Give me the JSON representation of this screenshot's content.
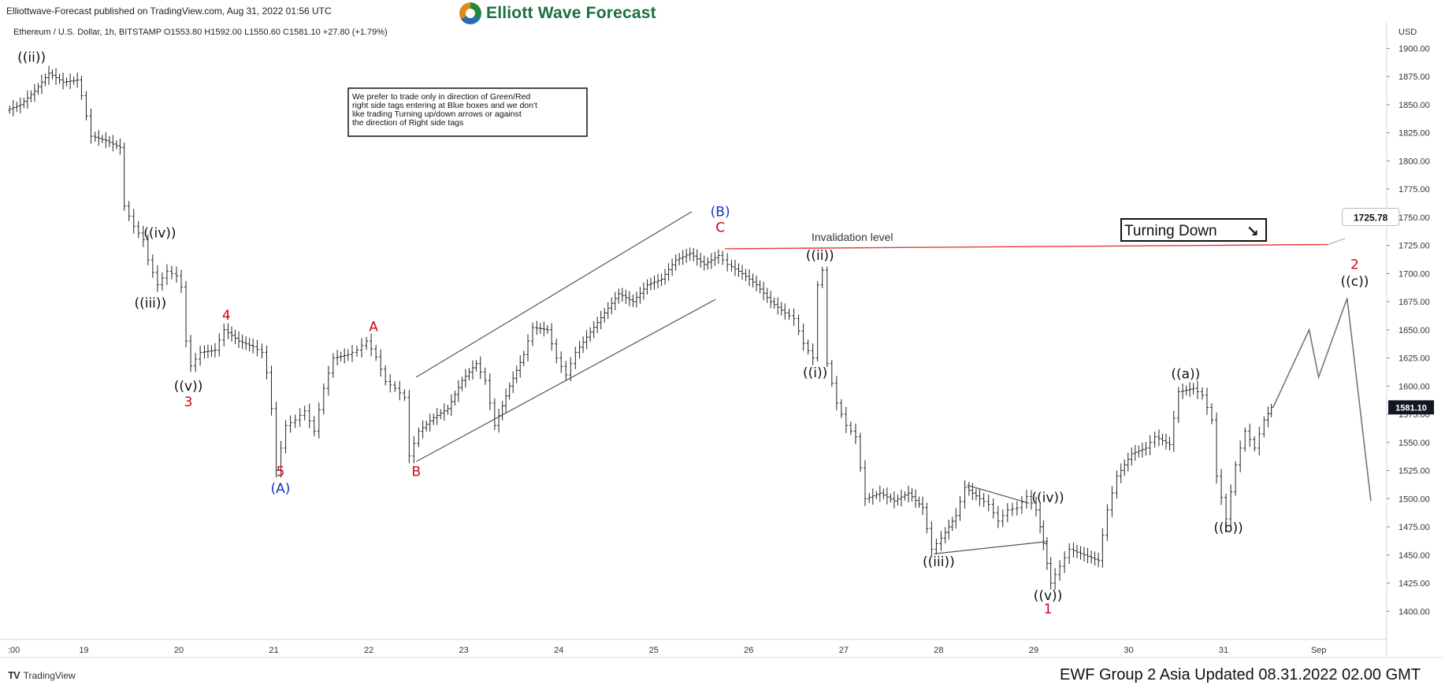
{
  "header": {
    "publisher": "Elliottwave-Forecast published on TradingView.com, Aug 31, 2022 01:56 UTC",
    "brand": "Elliott Wave Forecast",
    "symbol_line": "Ethereum / U.S. Dollar, 1h, BITSTAMP  O1553.80  H1592.00  L1550.60  C1581.10  +27.80 (+1.79%)"
  },
  "footer": {
    "tv_logo": "TradingView",
    "updated": "EWF Group 2 Asia Updated 08.31.2022 02.00 GMT"
  },
  "colors": {
    "price": "#222222",
    "wave_black": "#111111",
    "wave_red": "#d0021b",
    "wave_blue": "#1433c8",
    "invalidation_line": "#e23b3b",
    "channel": "#555555",
    "projection": "#777777",
    "price_tag_bg": "#131722"
  },
  "chart_data": {
    "type": "line",
    "instrument": "Ethereum / U.S. Dollar",
    "timeframe": "1h",
    "y_axis": {
      "unit": "USD",
      "ylim": [
        1375,
        1915
      ],
      "ticks": [
        "1400.00",
        "1425.00",
        "1450.00",
        "1475.00",
        "1500.00",
        "1525.00",
        "1550.00",
        "1575.00",
        "1600.00",
        "1625.00",
        "1650.00",
        "1675.00",
        "1700.00",
        "1725.00",
        "1750.00",
        "1775.00",
        "1800.00",
        "1825.00",
        "1850.00",
        "1875.00",
        "1900.00"
      ]
    },
    "x_axis": {
      "xlim": [
        18.0,
        32.5
      ],
      "ticks": [
        {
          "t": 18.0,
          "label": ":00"
        },
        {
          "t": 18.8,
          "label": "19"
        },
        {
          "t": 19.8,
          "label": "20"
        },
        {
          "t": 20.8,
          "label": "21"
        },
        {
          "t": 21.8,
          "label": "22"
        },
        {
          "t": 22.8,
          "label": "23"
        },
        {
          "t": 23.8,
          "label": "24"
        },
        {
          "t": 24.8,
          "label": "25"
        },
        {
          "t": 25.8,
          "label": "26"
        },
        {
          "t": 26.8,
          "label": "27"
        },
        {
          "t": 27.8,
          "label": "28"
        },
        {
          "t": 28.8,
          "label": "29"
        },
        {
          "t": 29.8,
          "label": "30"
        },
        {
          "t": 30.8,
          "label": "31"
        },
        {
          "t": 31.8,
          "label": "Sep"
        }
      ]
    },
    "price_path": [
      [
        18.0,
        1845
      ],
      [
        18.15,
        1850
      ],
      [
        18.3,
        1862
      ],
      [
        18.45,
        1878
      ],
      [
        18.6,
        1870
      ],
      [
        18.75,
        1872
      ],
      [
        18.8,
        1858
      ],
      [
        18.9,
        1822
      ],
      [
        19.05,
        1818
      ],
      [
        19.2,
        1812
      ],
      [
        19.25,
        1760
      ],
      [
        19.35,
        1742
      ],
      [
        19.45,
        1730
      ],
      [
        19.5,
        1712
      ],
      [
        19.6,
        1690
      ],
      [
        19.7,
        1702
      ],
      [
        19.8,
        1698
      ],
      [
        19.85,
        1688
      ],
      [
        19.9,
        1640
      ],
      [
        19.95,
        1618
      ],
      [
        20.05,
        1630
      ],
      [
        20.2,
        1632
      ],
      [
        20.3,
        1650
      ],
      [
        20.45,
        1640
      ],
      [
        20.6,
        1635
      ],
      [
        20.7,
        1630
      ],
      [
        20.75,
        1612
      ],
      [
        20.8,
        1580
      ],
      [
        20.85,
        1525
      ],
      [
        20.95,
        1565
      ],
      [
        21.05,
        1570
      ],
      [
        21.15,
        1578
      ],
      [
        21.25,
        1560
      ],
      [
        21.35,
        1598
      ],
      [
        21.45,
        1625
      ],
      [
        21.6,
        1628
      ],
      [
        21.7,
        1632
      ],
      [
        21.8,
        1640
      ],
      [
        21.9,
        1626
      ],
      [
        22.0,
        1604
      ],
      [
        22.1,
        1598
      ],
      [
        22.2,
        1590
      ],
      [
        22.25,
        1538
      ],
      [
        22.35,
        1560
      ],
      [
        22.5,
        1572
      ],
      [
        22.65,
        1580
      ],
      [
        22.8,
        1605
      ],
      [
        22.95,
        1620
      ],
      [
        23.05,
        1605
      ],
      [
        23.15,
        1565
      ],
      [
        23.3,
        1600
      ],
      [
        23.45,
        1628
      ],
      [
        23.55,
        1652
      ],
      [
        23.7,
        1650
      ],
      [
        23.8,
        1625
      ],
      [
        23.9,
        1610
      ],
      [
        24.0,
        1630
      ],
      [
        24.15,
        1648
      ],
      [
        24.3,
        1665
      ],
      [
        24.45,
        1682
      ],
      [
        24.6,
        1675
      ],
      [
        24.75,
        1690
      ],
      [
        24.9,
        1695
      ],
      [
        25.05,
        1712
      ],
      [
        25.2,
        1718
      ],
      [
        25.35,
        1708
      ],
      [
        25.5,
        1716
      ],
      [
        25.6,
        1708
      ],
      [
        25.75,
        1700
      ],
      [
        25.9,
        1690
      ],
      [
        26.05,
        1675
      ],
      [
        26.2,
        1665
      ],
      [
        26.3,
        1660
      ],
      [
        26.4,
        1638
      ],
      [
        26.5,
        1625
      ],
      [
        26.55,
        1690
      ],
      [
        26.6,
        1703
      ],
      [
        26.65,
        1620
      ],
      [
        26.75,
        1585
      ],
      [
        26.85,
        1565
      ],
      [
        26.95,
        1555
      ],
      [
        27.05,
        1500
      ],
      [
        27.2,
        1505
      ],
      [
        27.35,
        1498
      ],
      [
        27.5,
        1505
      ],
      [
        27.65,
        1492
      ],
      [
        27.75,
        1455
      ],
      [
        27.85,
        1465
      ],
      [
        28.0,
        1485
      ],
      [
        28.1,
        1510
      ],
      [
        28.25,
        1500
      ],
      [
        28.35,
        1495
      ],
      [
        28.45,
        1480
      ],
      [
        28.55,
        1490
      ],
      [
        28.65,
        1492
      ],
      [
        28.75,
        1502
      ],
      [
        28.85,
        1490
      ],
      [
        28.92,
        1460
      ],
      [
        29.0,
        1425
      ],
      [
        29.1,
        1440
      ],
      [
        29.2,
        1455
      ],
      [
        29.35,
        1450
      ],
      [
        29.5,
        1445
      ],
      [
        29.6,
        1490
      ],
      [
        29.7,
        1520
      ],
      [
        29.85,
        1540
      ],
      [
        30.0,
        1545
      ],
      [
        30.1,
        1555
      ],
      [
        30.25,
        1548
      ],
      [
        30.35,
        1595
      ],
      [
        30.5,
        1598
      ],
      [
        30.6,
        1592
      ],
      [
        30.7,
        1570
      ],
      [
        30.75,
        1520
      ],
      [
        30.85,
        1482
      ],
      [
        30.95,
        1530
      ],
      [
        31.05,
        1560
      ],
      [
        31.15,
        1545
      ],
      [
        31.25,
        1570
      ],
      [
        31.32,
        1581
      ]
    ],
    "projection_path": [
      [
        31.32,
        1581
      ],
      [
        31.7,
        1650
      ],
      [
        31.8,
        1608
      ],
      [
        32.1,
        1678
      ],
      [
        32.35,
        1498
      ]
    ],
    "channel_lines": [
      {
        "from": [
          22.3,
          1608
        ],
        "to": [
          25.2,
          1755
        ]
      },
      {
        "from": [
          22.3,
          1533
        ],
        "to": [
          25.45,
          1677
        ]
      }
    ],
    "triangle_lines": [
      {
        "from": [
          28.1,
          1512
        ],
        "to": [
          28.75,
          1496
        ]
      },
      {
        "from": [
          27.75,
          1451
        ],
        "to": [
          28.95,
          1462
        ]
      }
    ],
    "invalidation_line": {
      "from": [
        25.55,
        1722
      ],
      "to": [
        31.9,
        1725.78
      ],
      "label": "Invalidation level",
      "value": "1725.78"
    },
    "last_price": "1581.10",
    "wave_labels": [
      {
        "t": 18.25,
        "y": 1888,
        "text": "((ii))",
        "color": "black"
      },
      {
        "t": 19.6,
        "y": 1732,
        "text": "((iv))",
        "color": "black"
      },
      {
        "t": 19.5,
        "y": 1670,
        "text": "((iii))",
        "color": "black"
      },
      {
        "t": 19.9,
        "y": 1596,
        "text": "((v))",
        "color": "black"
      },
      {
        "t": 19.9,
        "y": 1582,
        "text": "3",
        "color": "red"
      },
      {
        "t": 20.3,
        "y": 1659,
        "text": "4",
        "color": "red"
      },
      {
        "t": 20.87,
        "y": 1520,
        "text": "5",
        "color": "red"
      },
      {
        "t": 20.87,
        "y": 1505,
        "text": "(A)",
        "color": "blue"
      },
      {
        "t": 21.85,
        "y": 1649,
        "text": "A",
        "color": "red"
      },
      {
        "t": 22.3,
        "y": 1520,
        "text": "B",
        "color": "red"
      },
      {
        "t": 25.5,
        "y": 1751,
        "text": "(B)",
        "color": "blue"
      },
      {
        "t": 25.5,
        "y": 1737,
        "text": "C",
        "color": "red"
      },
      {
        "t": 26.55,
        "y": 1712,
        "text": "((ii))",
        "color": "black"
      },
      {
        "t": 26.5,
        "y": 1608,
        "text": "((i))",
        "color": "black"
      },
      {
        "t": 27.8,
        "y": 1440,
        "text": "((iii))",
        "color": "black"
      },
      {
        "t": 28.95,
        "y": 1497,
        "text": "((iv))",
        "color": "black"
      },
      {
        "t": 28.95,
        "y": 1410,
        "text": "((v))",
        "color": "black"
      },
      {
        "t": 28.95,
        "y": 1398,
        "text": "1",
        "color": "red"
      },
      {
        "t": 30.4,
        "y": 1607,
        "text": "((a))",
        "color": "black"
      },
      {
        "t": 30.85,
        "y": 1470,
        "text": "((b))",
        "color": "black"
      },
      {
        "t": 32.18,
        "y": 1704,
        "text": "2",
        "color": "red"
      },
      {
        "t": 32.18,
        "y": 1689,
        "text": "((c))",
        "color": "black"
      }
    ]
  },
  "note_box": {
    "lines": [
      "We prefer to trade only in direction of Green/Red",
      "right side tags entering at Blue boxes and we don't",
      "like trading Turning up/down arrows or against",
      "the direction of Right side tags"
    ]
  },
  "turning_tag": {
    "label": "Turning Down",
    "arrow": "↘"
  }
}
